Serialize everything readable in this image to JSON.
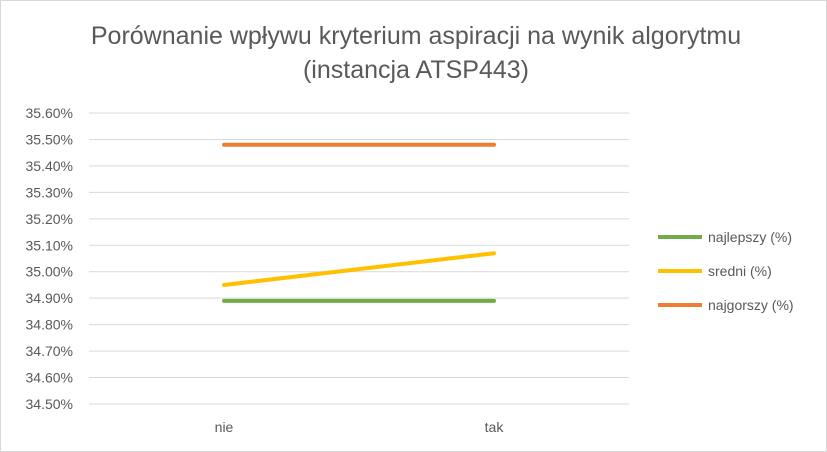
{
  "chart_data": {
    "type": "line",
    "title": "Porównanie wpływu kryterium aspiracji na wynik algorytmu (instancja ATSP443)",
    "xlabel": "",
    "ylabel": "",
    "categories": [
      "nie",
      "tak"
    ],
    "ylim": [
      34.5,
      35.6
    ],
    "ystep": 0.1,
    "yticks": [
      "34.50%",
      "34.60%",
      "34.70%",
      "34.80%",
      "34.90%",
      "35.00%",
      "35.10%",
      "35.20%",
      "35.30%",
      "35.40%",
      "35.50%",
      "35.60%"
    ],
    "grid": true,
    "legend_position": "right",
    "series": [
      {
        "name": "najlepszy (%)",
        "values": [
          34.89,
          34.89
        ],
        "color": "#70ad47"
      },
      {
        "name": "sredni (%)",
        "values": [
          34.95,
          35.07
        ],
        "color": "#ffc000"
      },
      {
        "name": "najgorszy (%)",
        "values": [
          35.48,
          35.48
        ],
        "color": "#ed7d31"
      }
    ]
  }
}
